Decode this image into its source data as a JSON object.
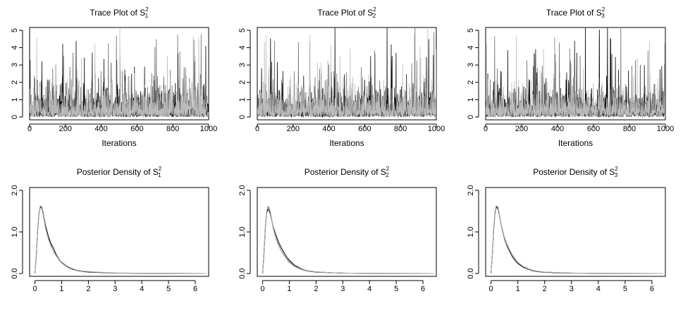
{
  "chart_data": [
    {
      "type": "line",
      "panel": "trace",
      "title_prefix": "Trace Plot of S",
      "subscript": "1",
      "superscript": "2",
      "xlabel": "Iterations",
      "ylabel": "",
      "xlim": [
        0,
        1000
      ],
      "ylim": [
        0,
        5
      ],
      "xticks": [
        0,
        200,
        400,
        600,
        800,
        1000
      ],
      "yticks": [
        0,
        1,
        2,
        3,
        4,
        5
      ],
      "series": [
        {
          "color": "#000000",
          "seed": 11
        },
        {
          "color": "#666666",
          "seed": 23
        },
        {
          "color": "#bbbbbb",
          "seed": 37
        }
      ],
      "grid": false
    },
    {
      "type": "line",
      "panel": "trace",
      "title_prefix": "Trace Plot of S",
      "subscript": "2",
      "superscript": "2",
      "xlabel": "Iterations",
      "ylabel": "",
      "xlim": [
        0,
        1000
      ],
      "ylim": [
        0,
        5
      ],
      "xticks": [
        0,
        200,
        400,
        600,
        800,
        1000
      ],
      "yticks": [
        0,
        1,
        2,
        3,
        4,
        5
      ],
      "series": [
        {
          "color": "#000000",
          "seed": 41
        },
        {
          "color": "#666666",
          "seed": 53
        },
        {
          "color": "#bbbbbb",
          "seed": 67
        }
      ],
      "grid": false
    },
    {
      "type": "line",
      "panel": "trace",
      "title_prefix": "Trace Plot of S",
      "subscript": "3",
      "superscript": "2",
      "xlabel": "Iterations",
      "ylabel": "",
      "xlim": [
        0,
        1000
      ],
      "ylim": [
        0,
        5
      ],
      "xticks": [
        0,
        200,
        400,
        600,
        800,
        1000
      ],
      "yticks": [
        0,
        1,
        2,
        3,
        4,
        5
      ],
      "series": [
        {
          "color": "#000000",
          "seed": 71
        },
        {
          "color": "#666666",
          "seed": 83
        },
        {
          "color": "#bbbbbb",
          "seed": 97
        }
      ],
      "grid": false
    },
    {
      "type": "line",
      "panel": "density",
      "title_prefix": "Posterior Density of S",
      "subscript": "1",
      "superscript": "2",
      "xlabel": "",
      "ylabel": "",
      "xlim": [
        -0.2,
        6.5
      ],
      "ylim": [
        0,
        2.0
      ],
      "xticks": [
        0,
        1,
        2,
        3,
        4,
        5,
        6
      ],
      "yticks": [
        0.0,
        1.0,
        2.0
      ],
      "ytick_labels": [
        "0.0",
        "1.0",
        "2.0"
      ],
      "series": [
        {
          "color": "#000000",
          "x": [
            0,
            0.05,
            0.1,
            0.15,
            0.2,
            0.25,
            0.3,
            0.4,
            0.5,
            0.6,
            0.7,
            0.8,
            0.9,
            1.0,
            1.2,
            1.4,
            1.6,
            1.8,
            2.0,
            2.5,
            3.0,
            4.0,
            5.0,
            6.4
          ],
          "y": [
            0,
            0.45,
            1.05,
            1.45,
            1.6,
            1.58,
            1.45,
            1.15,
            0.9,
            0.72,
            0.6,
            0.45,
            0.35,
            0.27,
            0.17,
            0.11,
            0.07,
            0.05,
            0.04,
            0.02,
            0.01,
            0.005,
            0.003,
            0.0
          ]
        },
        {
          "color": "#555555",
          "x": [
            0,
            0.05,
            0.1,
            0.15,
            0.2,
            0.25,
            0.3,
            0.4,
            0.5,
            0.6,
            0.7,
            0.8,
            0.9,
            1.0,
            1.2,
            1.4,
            1.6,
            1.8,
            2.0,
            2.5,
            3.0,
            4.0,
            5.0,
            6.4
          ],
          "y": [
            0,
            0.4,
            1.0,
            1.42,
            1.62,
            1.6,
            1.48,
            1.1,
            0.85,
            0.68,
            0.52,
            0.42,
            0.33,
            0.26,
            0.16,
            0.1,
            0.07,
            0.05,
            0.03,
            0.02,
            0.01,
            0.005,
            0.002,
            0.0
          ]
        },
        {
          "color": "#aaaaaa",
          "x": [
            0,
            0.05,
            0.1,
            0.15,
            0.2,
            0.25,
            0.3,
            0.4,
            0.5,
            0.6,
            0.7,
            0.8,
            0.9,
            1.0,
            1.2,
            1.4,
            1.6,
            1.8,
            2.0,
            2.5,
            3.0,
            4.0,
            5.0,
            6.4
          ],
          "y": [
            0,
            0.42,
            1.02,
            1.44,
            1.59,
            1.56,
            1.42,
            1.08,
            0.83,
            0.66,
            0.53,
            0.43,
            0.34,
            0.28,
            0.18,
            0.12,
            0.08,
            0.06,
            0.05,
            0.03,
            0.015,
            0.006,
            0.003,
            0.0
          ]
        }
      ],
      "grid": false
    },
    {
      "type": "line",
      "panel": "density",
      "title_prefix": "Posterior Density of S",
      "subscript": "2",
      "superscript": "2",
      "xlabel": "",
      "ylabel": "",
      "xlim": [
        -0.2,
        6.5
      ],
      "ylim": [
        0,
        2.0
      ],
      "xticks": [
        0,
        1,
        2,
        3,
        4,
        5,
        6
      ],
      "yticks": [
        0.0,
        1.0,
        2.0
      ],
      "ytick_labels": [
        "0.0",
        "1.0",
        "2.0"
      ],
      "series": [
        {
          "color": "#000000",
          "x": [
            0,
            0.05,
            0.1,
            0.15,
            0.2,
            0.25,
            0.3,
            0.4,
            0.5,
            0.6,
            0.7,
            0.8,
            0.9,
            1.0,
            1.2,
            1.4,
            1.6,
            1.8,
            2.0,
            2.5,
            3.0,
            4.0,
            5.0,
            6.4
          ],
          "y": [
            0,
            0.5,
            1.1,
            1.45,
            1.55,
            1.5,
            1.4,
            1.12,
            0.92,
            0.75,
            0.62,
            0.5,
            0.4,
            0.32,
            0.2,
            0.13,
            0.08,
            0.05,
            0.04,
            0.02,
            0.01,
            0.005,
            0.002,
            0.0
          ]
        },
        {
          "color": "#555555",
          "x": [
            0,
            0.05,
            0.1,
            0.15,
            0.2,
            0.25,
            0.3,
            0.4,
            0.5,
            0.6,
            0.7,
            0.8,
            0.9,
            1.0,
            1.2,
            1.4,
            1.6,
            1.8,
            2.0,
            2.5,
            3.0,
            4.0,
            5.0,
            6.4
          ],
          "y": [
            0,
            0.45,
            1.05,
            1.48,
            1.6,
            1.56,
            1.42,
            1.08,
            0.85,
            0.68,
            0.55,
            0.44,
            0.35,
            0.27,
            0.17,
            0.11,
            0.07,
            0.05,
            0.03,
            0.02,
            0.01,
            0.004,
            0.002,
            0.0
          ]
        },
        {
          "color": "#aaaaaa",
          "x": [
            0,
            0.05,
            0.1,
            0.15,
            0.2,
            0.25,
            0.3,
            0.4,
            0.5,
            0.6,
            0.7,
            0.8,
            0.9,
            1.0,
            1.2,
            1.4,
            1.6,
            1.8,
            2.0,
            2.5,
            3.0,
            4.0,
            5.0,
            6.4
          ],
          "y": [
            0,
            0.48,
            1.08,
            1.5,
            1.62,
            1.58,
            1.45,
            1.1,
            0.86,
            0.7,
            0.56,
            0.45,
            0.36,
            0.29,
            0.18,
            0.12,
            0.08,
            0.06,
            0.04,
            0.02,
            0.01,
            0.005,
            0.002,
            0.0
          ]
        }
      ],
      "grid": false
    },
    {
      "type": "line",
      "panel": "density",
      "title_prefix": "Posterior Density of S",
      "subscript": "3",
      "superscript": "2",
      "xlabel": "",
      "ylabel": "",
      "xlim": [
        -0.2,
        6.5
      ],
      "ylim": [
        0,
        2.0
      ],
      "xticks": [
        0,
        1,
        2,
        3,
        4,
        5,
        6
      ],
      "yticks": [
        0.0,
        1.0,
        2.0
      ],
      "ytick_labels": [
        "0.0",
        "1.0",
        "2.0"
      ],
      "series": [
        {
          "color": "#000000",
          "x": [
            0,
            0.05,
            0.1,
            0.15,
            0.2,
            0.25,
            0.3,
            0.4,
            0.5,
            0.6,
            0.7,
            0.8,
            0.9,
            1.0,
            1.2,
            1.4,
            1.6,
            1.8,
            2.0,
            2.5,
            3.0,
            4.0,
            5.0,
            6.4
          ],
          "y": [
            0,
            0.46,
            1.06,
            1.46,
            1.6,
            1.57,
            1.44,
            1.1,
            0.84,
            0.66,
            0.52,
            0.4,
            0.31,
            0.24,
            0.15,
            0.1,
            0.06,
            0.04,
            0.03,
            0.015,
            0.008,
            0.004,
            0.002,
            0.0
          ]
        },
        {
          "color": "#555555",
          "x": [
            0,
            0.05,
            0.1,
            0.15,
            0.2,
            0.25,
            0.3,
            0.4,
            0.5,
            0.6,
            0.7,
            0.8,
            0.9,
            1.0,
            1.2,
            1.4,
            1.6,
            1.8,
            2.0,
            2.5,
            3.0,
            4.0,
            5.0,
            6.4
          ],
          "y": [
            0,
            0.44,
            1.04,
            1.44,
            1.62,
            1.6,
            1.46,
            1.12,
            0.87,
            0.7,
            0.56,
            0.44,
            0.35,
            0.27,
            0.17,
            0.11,
            0.07,
            0.05,
            0.035,
            0.02,
            0.01,
            0.004,
            0.002,
            0.0
          ]
        },
        {
          "color": "#aaaaaa",
          "x": [
            0,
            0.05,
            0.1,
            0.15,
            0.2,
            0.25,
            0.3,
            0.4,
            0.5,
            0.6,
            0.7,
            0.8,
            0.9,
            1.0,
            1.2,
            1.4,
            1.6,
            1.8,
            2.0,
            2.5,
            3.0,
            4.0,
            5.0,
            6.4
          ],
          "y": [
            0,
            0.43,
            1.02,
            1.42,
            1.58,
            1.55,
            1.43,
            1.11,
            0.86,
            0.69,
            0.55,
            0.43,
            0.34,
            0.27,
            0.17,
            0.11,
            0.07,
            0.05,
            0.035,
            0.02,
            0.01,
            0.005,
            0.002,
            0.0
          ]
        }
      ],
      "grid": false
    }
  ]
}
